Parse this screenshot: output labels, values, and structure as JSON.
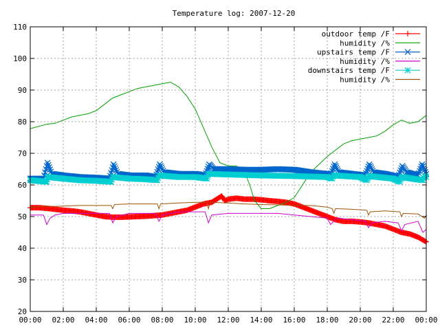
{
  "chart_data": {
    "type": "line",
    "title": "Temperature log: 2007-12-20",
    "xlabel": "",
    "ylabel": "",
    "xlim": [
      0,
      24
    ],
    "ylim": [
      20,
      110
    ],
    "grid": true,
    "legend_position": "top-right",
    "x_ticks": [
      "00:00",
      "02:00",
      "04:00",
      "06:00",
      "08:00",
      "10:00",
      "12:00",
      "14:00",
      "16:00",
      "18:00",
      "20:00",
      "22:00",
      "00:00"
    ],
    "y_ticks": [
      "20",
      "30",
      "40",
      "50",
      "60",
      "70",
      "80",
      "90",
      "100",
      "110"
    ],
    "series": [
      {
        "name": "outdoor temp /F",
        "color": "#ff0000",
        "marker": "plus",
        "x": [
          0,
          0.5,
          1,
          1.5,
          2,
          2.5,
          3,
          3.5,
          4,
          4.5,
          5,
          5.5,
          6,
          6.5,
          7,
          7.5,
          8,
          8.5,
          9,
          9.5,
          10,
          10.5,
          11,
          11.3,
          11.6,
          11.8,
          12,
          12.5,
          13,
          13.5,
          14,
          14.5,
          15,
          15.5,
          16,
          16.5,
          17,
          17.5,
          18,
          18.5,
          19,
          19.5,
          20,
          20.5,
          21,
          21.5,
          22,
          22.5,
          23,
          23.5,
          24
        ],
        "y": [
          52.8,
          52.8,
          52.6,
          52.3,
          52.0,
          51.8,
          51.5,
          51.0,
          50.5,
          50.0,
          49.8,
          49.8,
          49.9,
          50.0,
          50.1,
          50.3,
          50.5,
          51.0,
          51.5,
          52.0,
          53.0,
          54.0,
          54.5,
          55.5,
          56.5,
          55.0,
          55.5,
          55.8,
          55.5,
          55.5,
          55.3,
          55.0,
          54.8,
          54.5,
          54.0,
          53.0,
          52.0,
          51.0,
          50.0,
          49.0,
          48.5,
          48.5,
          48.3,
          48.0,
          47.5,
          47.0,
          46.0,
          45.0,
          44.5,
          43.5,
          42.0
        ]
      },
      {
        "name": "humidity /%",
        "color": "#00a000",
        "marker": "none",
        "x": [
          0,
          0.5,
          1,
          1.5,
          2,
          2.5,
          3,
          3.5,
          4,
          4.5,
          5,
          5.5,
          6,
          6.5,
          7,
          7.5,
          8,
          8.5,
          9,
          9.5,
          10,
          10.5,
          11,
          11.5,
          12,
          12.5,
          13,
          13.3,
          13.6,
          14,
          14.5,
          15,
          15.5,
          16,
          16.5,
          17,
          17.5,
          18,
          18.5,
          19,
          19.5,
          20,
          20.5,
          21,
          21.5,
          22,
          22.5,
          23,
          23.5,
          24
        ],
        "y": [
          77.8,
          78.5,
          79.2,
          79.5,
          80.5,
          81.5,
          82.0,
          82.5,
          83.5,
          85.5,
          87.5,
          88.5,
          89.5,
          90.5,
          91.0,
          91.5,
          92.0,
          92.5,
          91.0,
          88.0,
          84.0,
          78.0,
          72.0,
          67.0,
          66.0,
          66.0,
          64.0,
          60.0,
          55.0,
          52.5,
          52.5,
          53.5,
          54.5,
          56.0,
          60.0,
          64.0,
          66.5,
          69.0,
          71.0,
          73.0,
          74.0,
          74.5,
          75.0,
          75.5,
          77.0,
          79.0,
          80.5,
          79.5,
          80.0,
          82.0
        ]
      },
      {
        "name": "upstairs temp /F",
        "color": "#0066cc",
        "marker": "x",
        "x": [
          0,
          0.8,
          1.05,
          1.3,
          2,
          3,
          4,
          4.8,
          5.05,
          5.3,
          6,
          7,
          7.6,
          7.85,
          8.1,
          9,
          10,
          10.6,
          10.85,
          11.1,
          12,
          13,
          14,
          15,
          16,
          17,
          18,
          18.2,
          18.45,
          18.7,
          19.5,
          20.3,
          20.55,
          20.8,
          21.5,
          22.3,
          22.55,
          22.8,
          23.5,
          23.75,
          24
        ],
        "y": [
          62.0,
          62.0,
          67.0,
          63.5,
          63.0,
          62.5,
          62.3,
          62.0,
          66.5,
          63.5,
          63.0,
          63.0,
          62.5,
          66.5,
          64.0,
          63.5,
          63.5,
          63.0,
          66.5,
          65.0,
          65.0,
          64.8,
          64.8,
          65.0,
          64.8,
          64.0,
          63.5,
          63.0,
          66.5,
          64.0,
          63.5,
          63.0,
          66.5,
          64.0,
          63.5,
          62.5,
          66.0,
          64.0,
          63.0,
          66.5,
          63.5
        ]
      },
      {
        "name": "humidity /%",
        "color": "#cc00cc",
        "marker": "none",
        "x": [
          0,
          0.8,
          1.0,
          1.2,
          1.5,
          2,
          3,
          4,
          4.8,
          5.0,
          5.2,
          6,
          7,
          7.6,
          7.8,
          8.0,
          9,
          10,
          10.6,
          10.8,
          11.0,
          12,
          13,
          14,
          15,
          16,
          17,
          18,
          18.2,
          18.4,
          18.6,
          19.5,
          20.3,
          20.5,
          20.7,
          21.5,
          22.3,
          22.5,
          22.7,
          23.5,
          23.8,
          24
        ],
        "y": [
          50.5,
          50.5,
          47.5,
          49.5,
          50.5,
          51.0,
          51.0,
          51.0,
          51.0,
          48.0,
          50.0,
          51.0,
          51.0,
          51.0,
          48.5,
          50.5,
          51.5,
          51.5,
          51.5,
          48.0,
          50.5,
          51.0,
          51.0,
          51.0,
          51.0,
          50.5,
          50.0,
          49.5,
          47.5,
          48.5,
          49.5,
          49.0,
          48.5,
          46.5,
          48.0,
          48.5,
          48.0,
          45.5,
          47.5,
          48.5,
          45.0,
          46.0
        ]
      },
      {
        "name": "downstairs temp /F",
        "color": "#00ced1",
        "marker": "star",
        "x": [
          0,
          1,
          1.05,
          2,
          3,
          4,
          4.9,
          5.0,
          6,
          7,
          7.7,
          7.8,
          9,
          10,
          10.7,
          10.8,
          12,
          14,
          16,
          18,
          18.3,
          18.4,
          20,
          20.4,
          20.5,
          22,
          22.4,
          22.5,
          23.8,
          23.9,
          24
        ],
        "y": [
          61.5,
          61.0,
          62.5,
          62.0,
          61.5,
          61.3,
          61.0,
          62.5,
          62.0,
          61.8,
          61.5,
          63.0,
          62.5,
          62.5,
          62.0,
          63.5,
          63.3,
          63.0,
          62.8,
          62.5,
          62.0,
          63.0,
          62.5,
          61.5,
          62.8,
          62.0,
          61.0,
          62.5,
          61.5,
          62.8,
          62.5
        ]
      },
      {
        "name": "humidity /%",
        "color": "#a05000",
        "marker": "none",
        "x": [
          0,
          0.5,
          1,
          1.5,
          2,
          3,
          4,
          4.9,
          5.0,
          5.1,
          6,
          7,
          7.7,
          7.8,
          7.9,
          9,
          10,
          10.7,
          10.8,
          10.9,
          12,
          13,
          14,
          15,
          16,
          17,
          18,
          18.3,
          18.4,
          18.5,
          19.5,
          20.4,
          20.5,
          20.6,
          21.5,
          22.4,
          22.5,
          22.6,
          23.5,
          23.9,
          24
        ],
        "y": [
          53.0,
          53.0,
          53.3,
          53.2,
          53.3,
          53.5,
          53.5,
          53.5,
          52.5,
          53.8,
          54.0,
          54.0,
          54.0,
          52.5,
          54.0,
          54.3,
          54.5,
          54.5,
          52.5,
          54.5,
          54.3,
          54.0,
          53.8,
          53.7,
          53.5,
          53.5,
          53.0,
          52.5,
          51.0,
          52.5,
          52.3,
          52.0,
          50.5,
          51.5,
          51.8,
          51.5,
          50.0,
          51.0,
          50.8,
          49.5,
          50.5
        ]
      }
    ]
  }
}
